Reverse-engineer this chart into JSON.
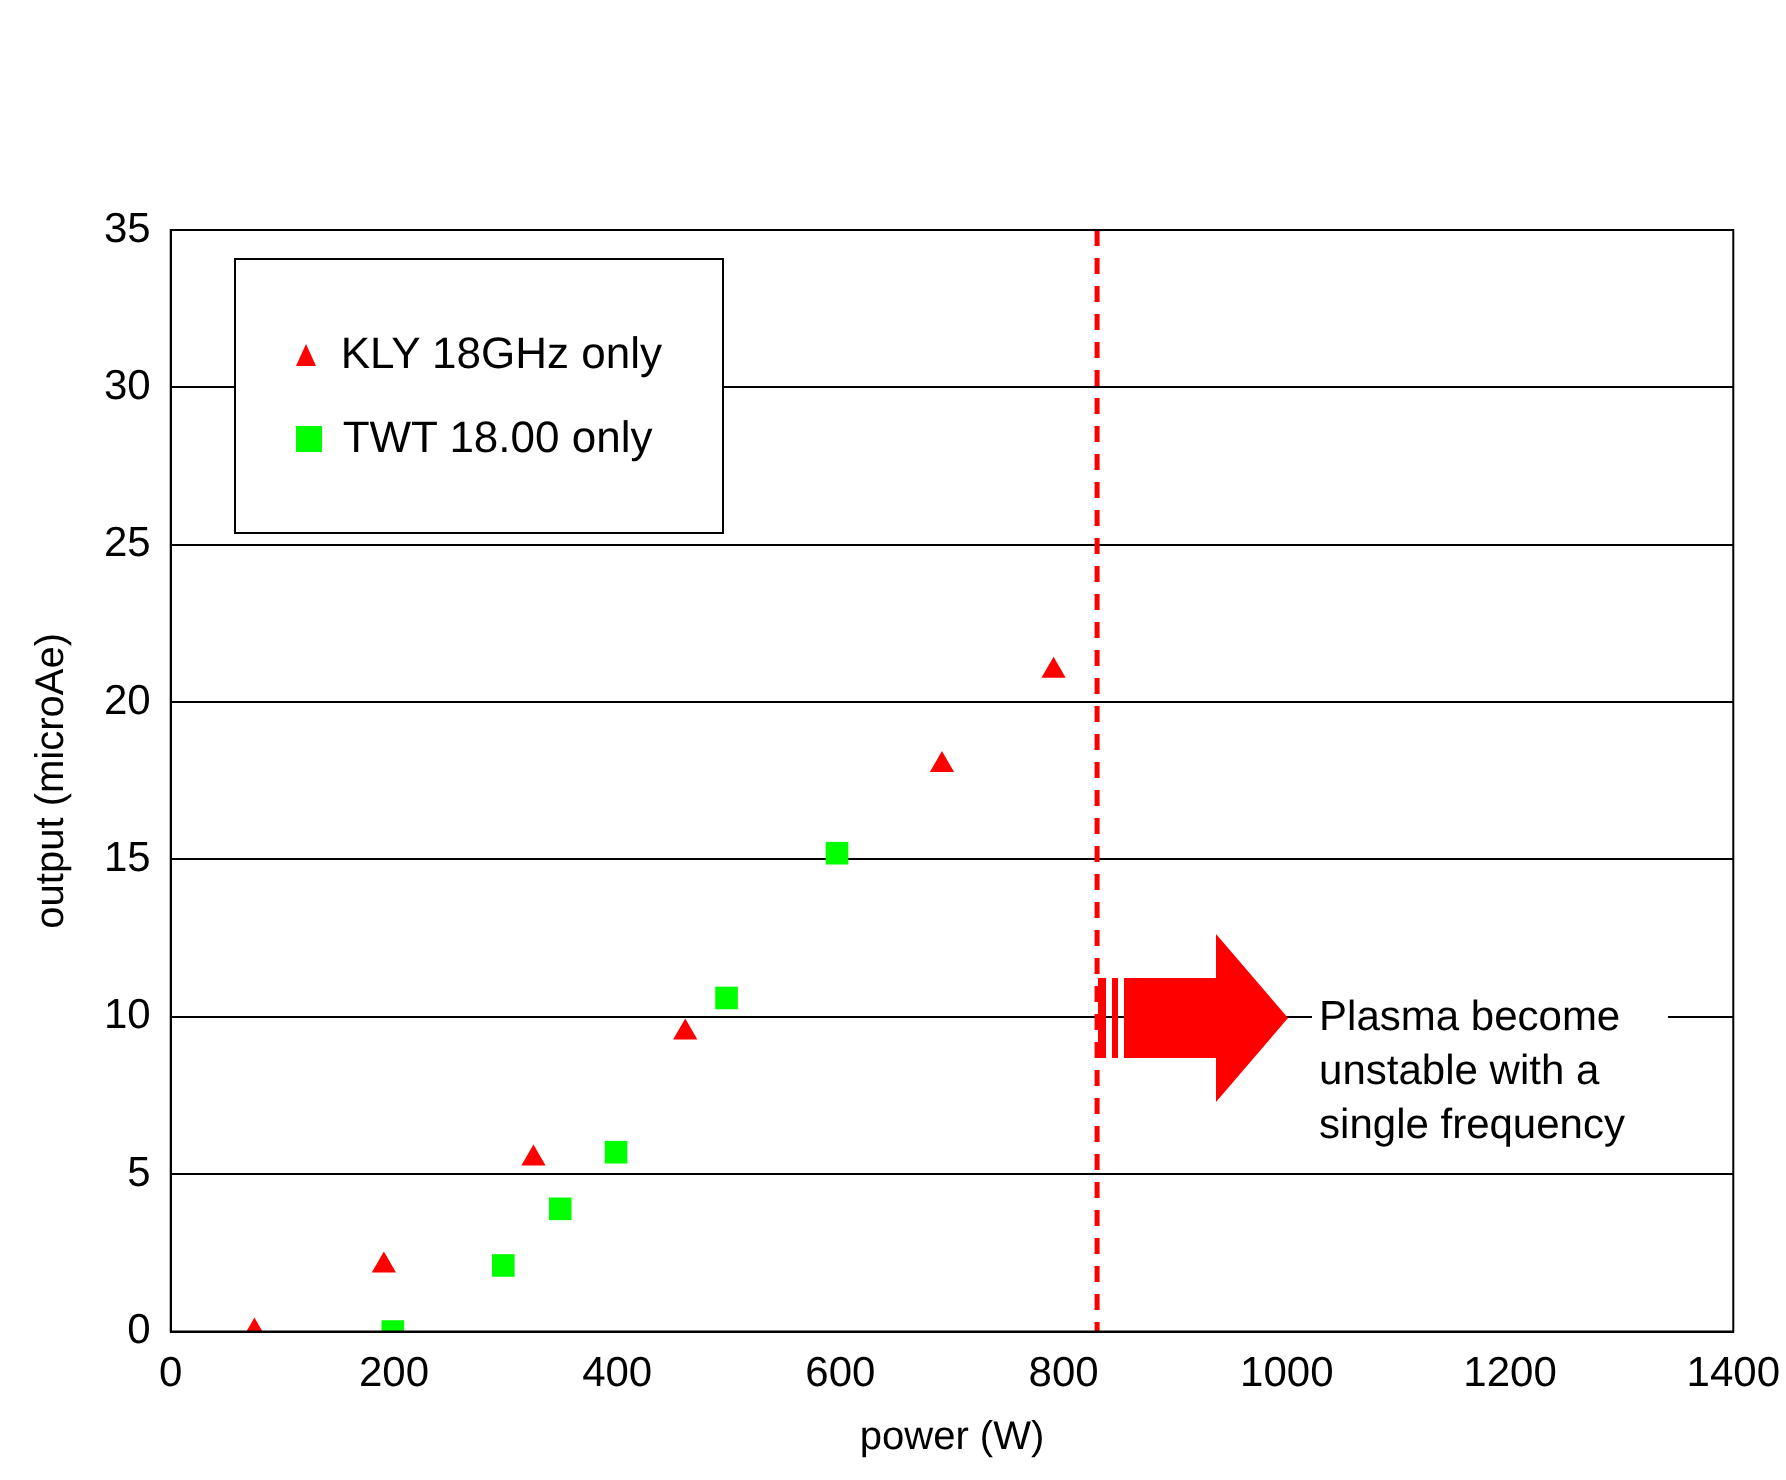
{
  "chart_data": {
    "type": "scatter",
    "xlabel": "power (W)",
    "ylabel": "output (microAe)",
    "xlim": [
      0,
      1400
    ],
    "xticks": [
      0,
      200,
      400,
      600,
      800,
      1000,
      1200,
      1400
    ],
    "ylim": [
      0,
      35
    ],
    "yticks": [
      0,
      5,
      10,
      15,
      20,
      25,
      30,
      35
    ],
    "grid": "y",
    "legend": "top left",
    "series": [
      {
        "name": "KLY 18GHz only",
        "color": "#ff0000",
        "marker": "triangle",
        "x": [
          75,
          191,
          325,
          461,
          691,
          791
        ],
        "values": [
          0,
          2.1,
          5.5,
          9.5,
          18,
          21
        ]
      },
      {
        "name": "TWT 18.00 only",
        "color": "#00ff00",
        "marker": "square",
        "x": [
          199,
          298,
          349,
          399,
          498,
          597
        ],
        "values": [
          0,
          2.1,
          3.9,
          5.7,
          10.6,
          15.2
        ]
      }
    ],
    "ref_lines": [
      {
        "axis": "x",
        "value": 830,
        "color": "#ff0000",
        "line_style": "dashed"
      }
    ],
    "annotations": [
      "Plasma become unstable with a single frequency"
    ]
  }
}
